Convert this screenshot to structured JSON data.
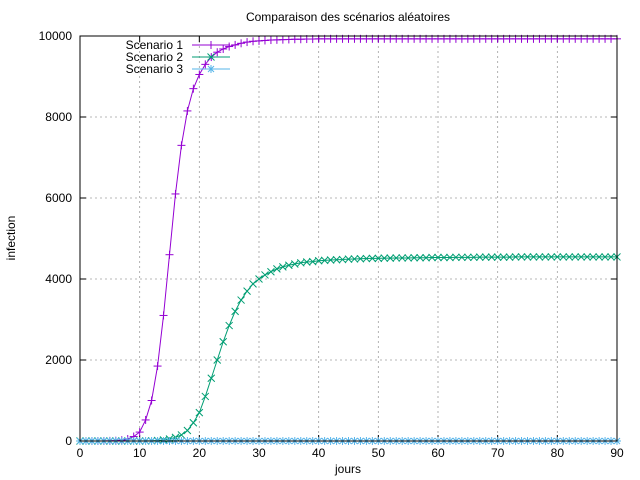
{
  "chart_data": {
    "type": "line",
    "title": "Comparaison des scénarios aléatoires",
    "xlabel": "jours",
    "ylabel": "infection",
    "xlim": [
      0,
      90
    ],
    "ylim": [
      0,
      10000
    ],
    "x_ticks": [
      0,
      10,
      20,
      30,
      40,
      50,
      60,
      70,
      80,
      90
    ],
    "y_ticks": [
      0,
      2000,
      4000,
      6000,
      8000,
      10000
    ],
    "grid": true,
    "legend_position": "top-left",
    "x": [
      0,
      1,
      2,
      3,
      4,
      5,
      6,
      7,
      8,
      9,
      10,
      11,
      12,
      13,
      14,
      15,
      16,
      17,
      18,
      19,
      20,
      21,
      22,
      23,
      24,
      25,
      26,
      27,
      28,
      29,
      30,
      31,
      32,
      33,
      34,
      35,
      36,
      37,
      38,
      39,
      40,
      41,
      42,
      43,
      44,
      45,
      46,
      47,
      48,
      49,
      50,
      51,
      52,
      53,
      54,
      55,
      56,
      57,
      58,
      59,
      60,
      61,
      62,
      63,
      64,
      65,
      66,
      67,
      68,
      69,
      70,
      71,
      72,
      73,
      74,
      75,
      76,
      77,
      78,
      79,
      80,
      81,
      82,
      83,
      84,
      85,
      86,
      87,
      88,
      89,
      90
    ],
    "series": [
      {
        "name": "Scenario 1",
        "color": "#9400d3",
        "marker": "plus",
        "values": [
          0,
          0,
          0,
          0,
          1,
          3,
          7,
          20,
          50,
          110,
          220,
          520,
          1000,
          1850,
          3100,
          4600,
          6100,
          7300,
          8150,
          8700,
          9050,
          9300,
          9480,
          9600,
          9680,
          9740,
          9780,
          9820,
          9850,
          9870,
          9880,
          9890,
          9900,
          9905,
          9910,
          9915,
          9920,
          9920,
          9925,
          9925,
          9930,
          9930,
          9930,
          9930,
          9930,
          9930,
          9930,
          9930,
          9930,
          9930,
          9930,
          9930,
          9930,
          9930,
          9930,
          9930,
          9930,
          9930,
          9930,
          9930,
          9930,
          9930,
          9930,
          9930,
          9930,
          9930,
          9930,
          9930,
          9930,
          9930,
          9930,
          9930,
          9930,
          9930,
          9930,
          9930,
          9930,
          9930,
          9930,
          9930,
          9930,
          9930,
          9930,
          9930,
          9930,
          9930,
          9930,
          9930,
          9930,
          9930,
          9930
        ]
      },
      {
        "name": "Scenario 2",
        "color": "#009e73",
        "marker": "cross",
        "values": [
          0,
          0,
          0,
          0,
          0,
          0,
          0,
          0,
          0,
          0,
          0,
          2,
          5,
          12,
          25,
          50,
          90,
          150,
          260,
          450,
          700,
          1100,
          1550,
          2000,
          2450,
          2850,
          3200,
          3480,
          3700,
          3880,
          4000,
          4100,
          4180,
          4250,
          4300,
          4340,
          4370,
          4400,
          4420,
          4430,
          4450,
          4460,
          4470,
          4475,
          4480,
          4490,
          4495,
          4500,
          4505,
          4510,
          4510,
          4515,
          4515,
          4520,
          4520,
          4520,
          4525,
          4525,
          4525,
          4530,
          4530,
          4530,
          4530,
          4535,
          4535,
          4535,
          4535,
          4540,
          4540,
          4540,
          4540,
          4540,
          4540,
          4545,
          4545,
          4545,
          4545,
          4545,
          4545,
          4545,
          4545,
          4545,
          4545,
          4545,
          4545,
          4545,
          4545,
          4545,
          4545,
          4545,
          4545
        ]
      },
      {
        "name": "Scenario 3",
        "color": "#56b4e9",
        "marker": "star",
        "values": [
          0,
          0,
          0,
          0,
          0,
          0,
          0,
          0,
          0,
          0,
          0,
          0,
          0,
          0,
          0,
          0,
          0,
          0,
          0,
          0,
          0,
          0,
          0,
          0,
          0,
          0,
          0,
          0,
          0,
          0,
          0,
          0,
          0,
          0,
          0,
          0,
          0,
          0,
          0,
          0,
          0,
          0,
          0,
          0,
          0,
          0,
          0,
          0,
          0,
          0,
          0,
          0,
          0,
          0,
          0,
          0,
          0,
          0,
          0,
          0,
          0,
          0,
          0,
          0,
          0,
          0,
          0,
          0,
          0,
          0,
          0,
          0,
          0,
          0,
          0,
          0,
          0,
          0,
          0,
          0,
          0,
          0,
          0,
          0,
          0,
          0,
          0,
          0,
          0,
          0,
          0
        ]
      }
    ]
  }
}
